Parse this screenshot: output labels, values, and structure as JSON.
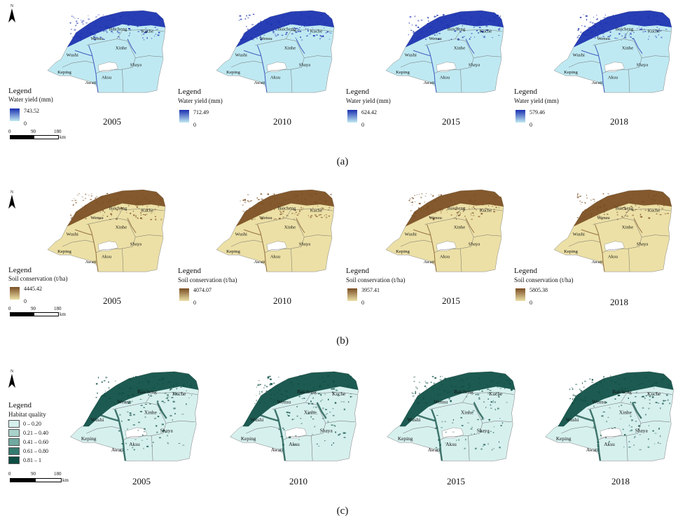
{
  "north_label": "N",
  "place_names": [
    "Baicheng",
    "Wensu",
    "Kuche",
    "Xinhe",
    "Wushi",
    "Shaya",
    "Keping",
    "Aksu",
    "Awati"
  ],
  "panel_a": {
    "label": "(a)",
    "legend_title": "Legend",
    "legend_sub": "Water yield (mm)",
    "scale": {
      "zero": "0",
      "mid": "90",
      "end": "180",
      "unit": "km"
    },
    "colors": {
      "high": "#1a2fb0",
      "low": "#bfe9f2"
    },
    "maps": [
      {
        "year": "2005",
        "max": "743.52",
        "min": "0"
      },
      {
        "year": "2010",
        "max": "712.49",
        "min": "0"
      },
      {
        "year": "2015",
        "max": "624.42",
        "min": "0"
      },
      {
        "year": "2018",
        "max": "579.46",
        "min": "0"
      }
    ]
  },
  "panel_b": {
    "label": "(b)",
    "legend_title": "Legend",
    "legend_sub": "Soil conservation (t/ha)",
    "scale": {
      "zero": "0",
      "mid": "90",
      "end": "180",
      "unit": "km"
    },
    "colors": {
      "high": "#7a4d23",
      "low": "#ece0a6"
    },
    "maps": [
      {
        "year": "2005",
        "max": "4445.42",
        "min": "0"
      },
      {
        "year": "2010",
        "max": "4074.07",
        "min": "0"
      },
      {
        "year": "2015",
        "max": "3957.41",
        "min": "0"
      },
      {
        "year": "2018",
        "max": "5805.38",
        "min": "0"
      }
    ]
  },
  "panel_c": {
    "label": "(c)",
    "legend_title": "Legend",
    "legend_sub": "Habitat quality",
    "scale": {
      "zero": "0",
      "mid": "90",
      "end": "180",
      "unit": "km"
    },
    "classes": [
      {
        "label": "0 – 0.20",
        "color": "#d6f0ee"
      },
      {
        "label": "0.21 – 0.40",
        "color": "#a8d2ca"
      },
      {
        "label": "0.41 – 0.60",
        "color": "#6fa99f"
      },
      {
        "label": "0.61 – 0.80",
        "color": "#357a6f"
      },
      {
        "label": "0.81 – 1",
        "color": "#0d4d43"
      }
    ],
    "maps": [
      {
        "year": "2005"
      },
      {
        "year": "2010"
      },
      {
        "year": "2015"
      },
      {
        "year": "2018"
      }
    ]
  }
}
